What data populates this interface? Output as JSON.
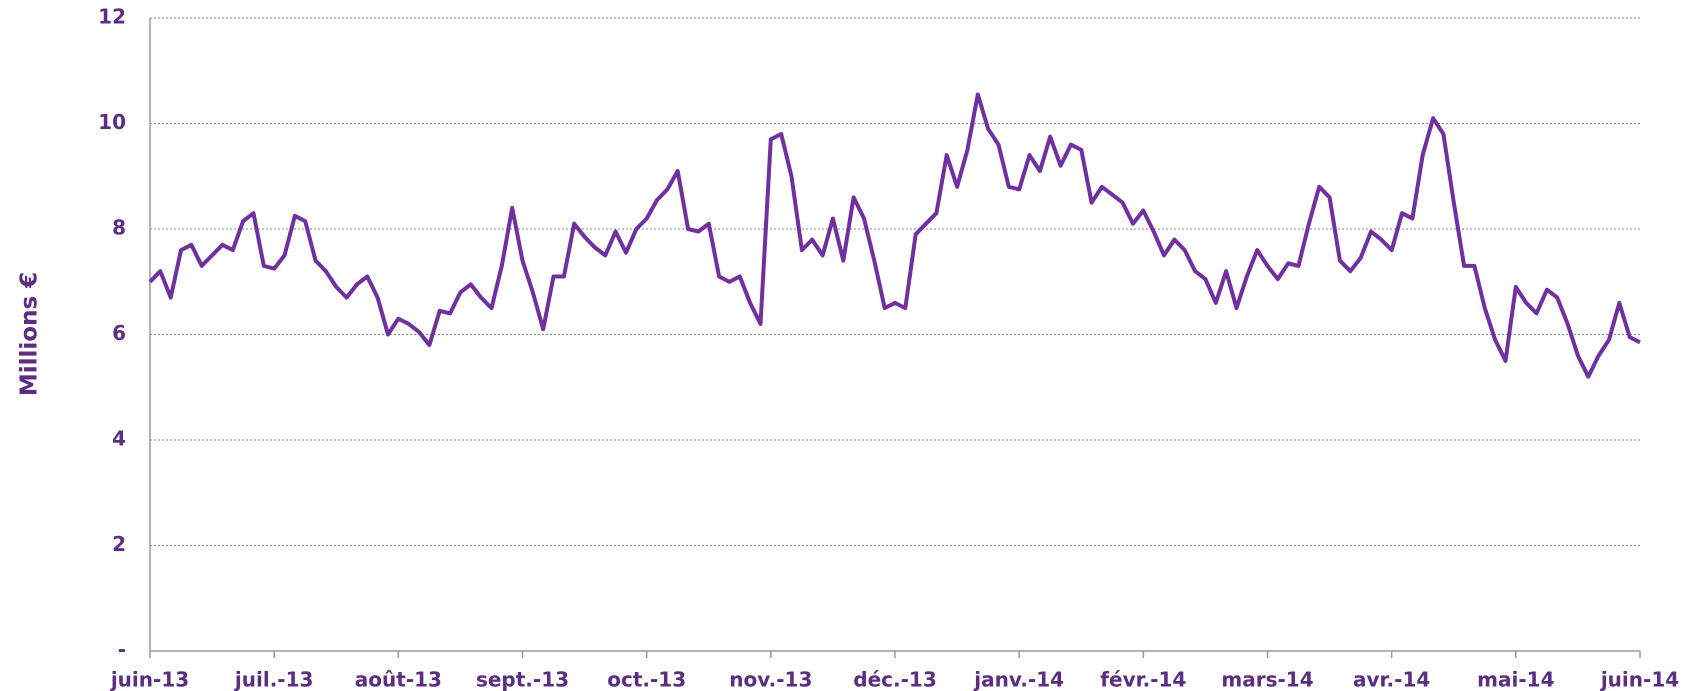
{
  "chart_data": {
    "type": "line",
    "y_label": "Millions €",
    "categories": [
      "juin-13",
      null,
      null,
      null,
      null,
      null,
      null,
      null,
      null,
      null,
      null,
      null,
      "juil.-13",
      null,
      null,
      null,
      null,
      null,
      null,
      null,
      null,
      null,
      null,
      null,
      "août-13",
      null,
      null,
      null,
      null,
      null,
      null,
      null,
      null,
      null,
      null,
      null,
      "sept.-13",
      null,
      null,
      null,
      null,
      null,
      null,
      null,
      null,
      null,
      null,
      null,
      "oct.-13",
      null,
      null,
      null,
      null,
      null,
      null,
      null,
      null,
      null,
      null,
      null,
      "nov.-13",
      null,
      null,
      null,
      null,
      null,
      null,
      null,
      null,
      null,
      null,
      null,
      "déc.-13",
      null,
      null,
      null,
      null,
      null,
      null,
      null,
      null,
      null,
      null,
      null,
      "janv.-14",
      null,
      null,
      null,
      null,
      null,
      null,
      null,
      null,
      null,
      null,
      null,
      "févr.-14",
      null,
      null,
      null,
      null,
      null,
      null,
      null,
      null,
      null,
      null,
      null,
      "mars-14",
      null,
      null,
      null,
      null,
      null,
      null,
      null,
      null,
      null,
      null,
      null,
      "avr.-14",
      null,
      null,
      null,
      null,
      null,
      null,
      null,
      null,
      null,
      null,
      null,
      "mai-14",
      null,
      null,
      null,
      null,
      null,
      null,
      null,
      null,
      null,
      null,
      null,
      "juin-14"
    ],
    "series": [
      {
        "color": "#7030a0",
        "values": [
          7.0,
          7.2,
          6.7,
          7.6,
          7.7,
          7.3,
          7.5,
          7.7,
          7.6,
          8.15,
          8.3,
          7.3,
          7.25,
          7.5,
          8.25,
          8.15,
          7.4,
          7.2,
          6.9,
          6.7,
          6.95,
          7.1,
          6.7,
          6.0,
          6.3,
          6.2,
          6.05,
          5.8,
          6.45,
          6.4,
          6.8,
          6.95,
          6.7,
          6.5,
          7.3,
          8.4,
          7.4,
          6.8,
          6.1,
          7.1,
          7.1,
          8.1,
          7.85,
          7.65,
          7.5,
          7.95,
          7.55,
          8.0,
          8.2,
          8.55,
          8.75,
          9.1,
          8.0,
          7.95,
          8.1,
          7.1,
          7.0,
          7.1,
          6.6,
          6.2,
          9.7,
          9.8,
          9.0,
          7.6,
          7.8,
          7.5,
          8.2,
          7.4,
          8.6,
          8.2,
          7.4,
          6.5,
          6.6,
          6.5,
          7.9,
          8.1,
          8.3,
          9.4,
          8.8,
          9.5,
          10.55,
          9.9,
          9.6,
          8.8,
          8.75,
          9.4,
          9.1,
          9.75,
          9.2,
          9.6,
          9.5,
          8.5,
          8.8,
          8.65,
          8.5,
          8.1,
          8.35,
          7.95,
          7.5,
          7.8,
          7.6,
          7.2,
          7.05,
          6.6,
          7.2,
          6.5,
          7.1,
          7.6,
          7.3,
          7.05,
          7.35,
          7.3,
          8.1,
          8.8,
          8.6,
          7.4,
          7.2,
          7.45,
          7.95,
          7.8,
          7.6,
          8.3,
          8.2,
          9.4,
          10.1,
          9.8,
          8.5,
          7.3,
          7.3,
          6.5,
          5.9,
          5.5,
          6.9,
          6.6,
          6.4,
          6.85,
          6.7,
          6.2,
          5.6,
          5.2,
          5.6,
          5.9,
          6.6,
          5.95,
          5.85
        ]
      }
    ],
    "ylim": [
      0,
      12
    ],
    "yticks": [
      {
        "value": 0,
        "label": "-"
      },
      2,
      4,
      6,
      8,
      10,
      12
    ],
    "grid": true
  }
}
